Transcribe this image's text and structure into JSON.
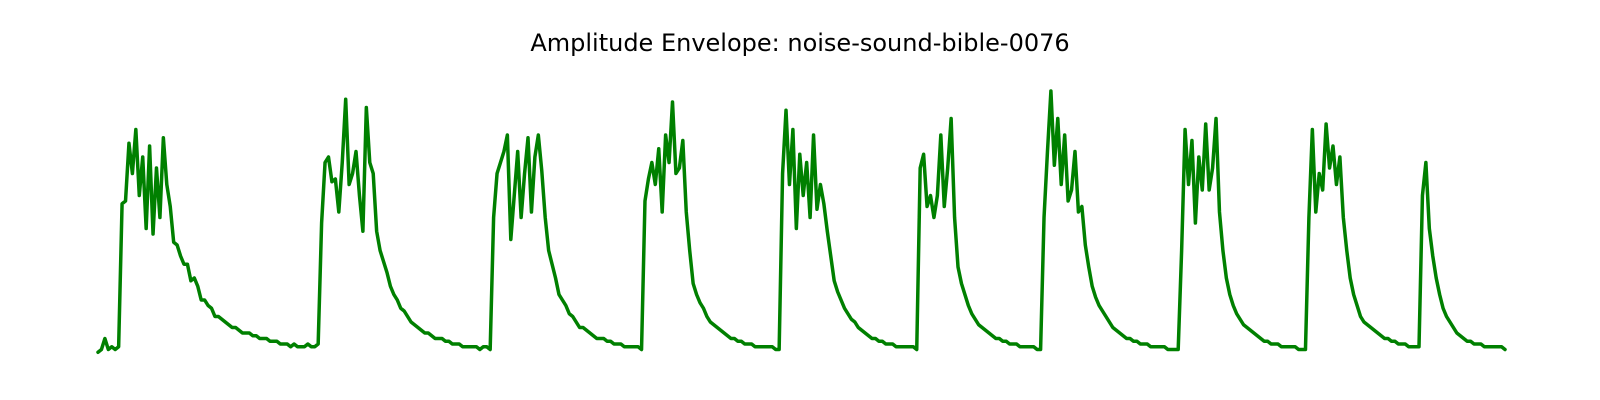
{
  "chart_data": {
    "type": "line",
    "title": "Amplitude Envelope: noise-sound-bible-0076",
    "xlabel": "",
    "ylabel": "",
    "axes_visible": false,
    "grid": false,
    "legend": "none",
    "ylim": [
      0,
      1.0
    ],
    "style": {
      "line_color": "#008000"
    },
    "series": [
      {
        "values": [
          0.01,
          0.02,
          0.06,
          0.02,
          0.03,
          0.02,
          0.03,
          0.55,
          0.56,
          0.77,
          0.66,
          0.82,
          0.58,
          0.72,
          0.46,
          0.76,
          0.44,
          0.68,
          0.5,
          0.79,
          0.62,
          0.54,
          0.41,
          0.4,
          0.36,
          0.33,
          0.33,
          0.27,
          0.28,
          0.25,
          0.2,
          0.2,
          0.18,
          0.17,
          0.14,
          0.14,
          0.13,
          0.12,
          0.11,
          0.1,
          0.1,
          0.09,
          0.08,
          0.08,
          0.08,
          0.07,
          0.07,
          0.06,
          0.06,
          0.06,
          0.05,
          0.05,
          0.05,
          0.04,
          0.04,
          0.04,
          0.03,
          0.04,
          0.03,
          0.03,
          0.03,
          0.04,
          0.03,
          0.03,
          0.04,
          0.48,
          0.7,
          0.72,
          0.63,
          0.64,
          0.52,
          0.7,
          0.93,
          0.62,
          0.66,
          0.74,
          0.58,
          0.45,
          0.9,
          0.7,
          0.66,
          0.45,
          0.38,
          0.34,
          0.3,
          0.25,
          0.22,
          0.2,
          0.17,
          0.16,
          0.14,
          0.12,
          0.11,
          0.1,
          0.09,
          0.08,
          0.08,
          0.07,
          0.06,
          0.06,
          0.06,
          0.05,
          0.05,
          0.04,
          0.04,
          0.04,
          0.03,
          0.03,
          0.03,
          0.03,
          0.03,
          0.02,
          0.03,
          0.03,
          0.02,
          0.5,
          0.66,
          0.7,
          0.74,
          0.8,
          0.42,
          0.58,
          0.74,
          0.5,
          0.66,
          0.79,
          0.52,
          0.72,
          0.8,
          0.67,
          0.5,
          0.38,
          0.33,
          0.28,
          0.22,
          0.2,
          0.18,
          0.15,
          0.14,
          0.12,
          0.1,
          0.1,
          0.09,
          0.08,
          0.07,
          0.06,
          0.06,
          0.06,
          0.05,
          0.05,
          0.04,
          0.04,
          0.04,
          0.03,
          0.03,
          0.03,
          0.03,
          0.03,
          0.02,
          0.56,
          0.64,
          0.7,
          0.62,
          0.75,
          0.52,
          0.8,
          0.7,
          0.92,
          0.66,
          0.68,
          0.78,
          0.52,
          0.38,
          0.26,
          0.22,
          0.19,
          0.17,
          0.14,
          0.12,
          0.11,
          0.1,
          0.09,
          0.08,
          0.07,
          0.06,
          0.06,
          0.05,
          0.05,
          0.04,
          0.04,
          0.04,
          0.03,
          0.03,
          0.03,
          0.03,
          0.03,
          0.03,
          0.02,
          0.02,
          0.66,
          0.89,
          0.62,
          0.82,
          0.46,
          0.73,
          0.58,
          0.7,
          0.5,
          0.8,
          0.53,
          0.62,
          0.55,
          0.45,
          0.36,
          0.27,
          0.23,
          0.2,
          0.17,
          0.15,
          0.13,
          0.12,
          0.1,
          0.09,
          0.08,
          0.07,
          0.06,
          0.06,
          0.05,
          0.05,
          0.04,
          0.04,
          0.04,
          0.03,
          0.03,
          0.03,
          0.03,
          0.03,
          0.03,
          0.02,
          0.68,
          0.73,
          0.54,
          0.58,
          0.5,
          0.58,
          0.8,
          0.54,
          0.68,
          0.86,
          0.5,
          0.32,
          0.26,
          0.22,
          0.18,
          0.15,
          0.13,
          0.11,
          0.1,
          0.09,
          0.08,
          0.07,
          0.06,
          0.06,
          0.05,
          0.05,
          0.04,
          0.04,
          0.04,
          0.03,
          0.03,
          0.03,
          0.03,
          0.03,
          0.02,
          0.02,
          0.5,
          0.74,
          0.96,
          0.69,
          0.86,
          0.62,
          0.8,
          0.56,
          0.6,
          0.74,
          0.52,
          0.54,
          0.4,
          0.32,
          0.25,
          0.21,
          0.18,
          0.16,
          0.14,
          0.12,
          0.1,
          0.09,
          0.08,
          0.07,
          0.06,
          0.06,
          0.05,
          0.05,
          0.04,
          0.04,
          0.04,
          0.03,
          0.03,
          0.03,
          0.03,
          0.03,
          0.02,
          0.02,
          0.02,
          0.02,
          0.38,
          0.82,
          0.62,
          0.78,
          0.48,
          0.72,
          0.6,
          0.84,
          0.6,
          0.68,
          0.86,
          0.52,
          0.38,
          0.28,
          0.22,
          0.18,
          0.15,
          0.13,
          0.11,
          0.1,
          0.09,
          0.08,
          0.07,
          0.06,
          0.05,
          0.05,
          0.04,
          0.04,
          0.04,
          0.03,
          0.03,
          0.03,
          0.03,
          0.03,
          0.02,
          0.02,
          0.02,
          0.5,
          0.82,
          0.52,
          0.66,
          0.6,
          0.84,
          0.68,
          0.76,
          0.62,
          0.72,
          0.5,
          0.38,
          0.28,
          0.22,
          0.18,
          0.14,
          0.12,
          0.11,
          0.1,
          0.09,
          0.08,
          0.07,
          0.06,
          0.06,
          0.05,
          0.05,
          0.04,
          0.04,
          0.04,
          0.03,
          0.03,
          0.03,
          0.03,
          0.58,
          0.7,
          0.46,
          0.36,
          0.28,
          0.22,
          0.17,
          0.14,
          0.12,
          0.1,
          0.08,
          0.07,
          0.06,
          0.05,
          0.05,
          0.04,
          0.04,
          0.04,
          0.03,
          0.03,
          0.03,
          0.03,
          0.03,
          0.03,
          0.02
        ]
      }
    ]
  }
}
